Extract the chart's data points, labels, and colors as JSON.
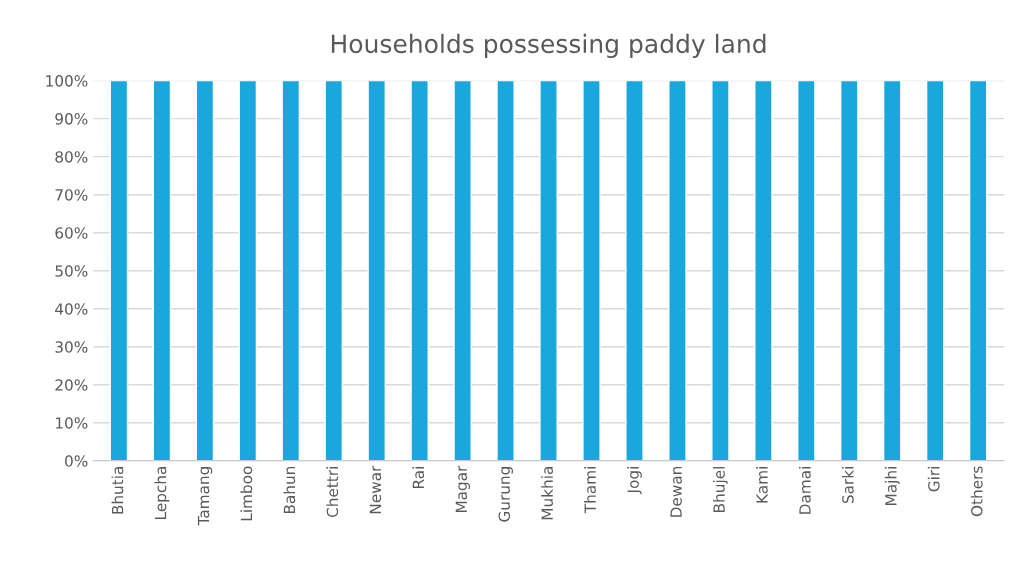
{
  "chart_data": {
    "type": "bar",
    "title": "Households possessing paddy land",
    "categories": [
      "Bhutia",
      "Lepcha",
      "Tamang",
      "Limboo",
      "Bahun",
      "Chettri",
      "Newar",
      "Rai",
      "Magar",
      "Gurung",
      "Mukhia",
      "Thami",
      "Jogi",
      "Dewan",
      "Bhujel",
      "Kami",
      "Damai",
      "Sarki",
      "Majhi",
      "Giri",
      "Others"
    ],
    "values": [
      100,
      100,
      100,
      100,
      100,
      100,
      100,
      100,
      100,
      100,
      100,
      100,
      100,
      100,
      100,
      100,
      100,
      100,
      100,
      100,
      100
    ],
    "color": "#1aa7dc",
    "ylim": [
      0,
      100
    ],
    "yticks": [
      {
        "value": 0,
        "label": "0%"
      },
      {
        "value": 10,
        "label": "10%"
      },
      {
        "value": 20,
        "label": "20%"
      },
      {
        "value": 30,
        "label": "30%"
      },
      {
        "value": 40,
        "label": "40%"
      },
      {
        "value": 50,
        "label": "50%"
      },
      {
        "value": 60,
        "label": "60%"
      },
      {
        "value": 70,
        "label": "70%"
      },
      {
        "value": 80,
        "label": "80%"
      },
      {
        "value": 90,
        "label": "90%"
      },
      {
        "value": 100,
        "label": "100%"
      }
    ],
    "grid": "y"
  }
}
